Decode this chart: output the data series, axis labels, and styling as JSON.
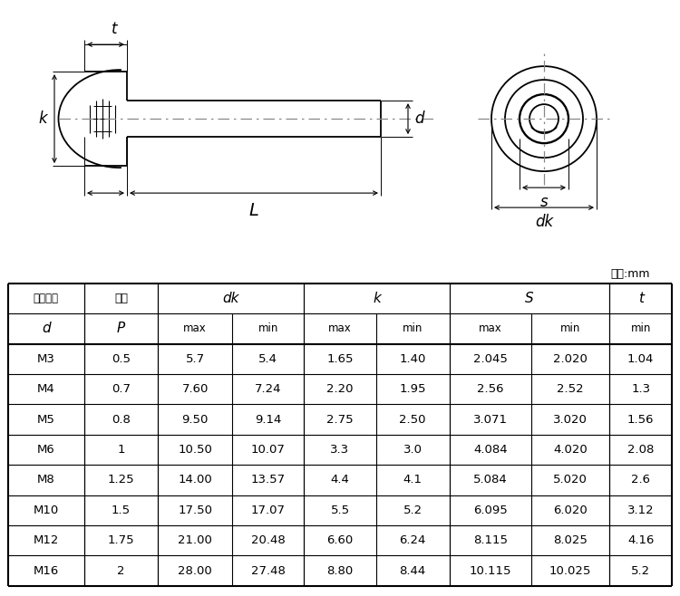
{
  "table_headers_row1": [
    "公称直径",
    "螺距",
    "dk",
    "",
    "k",
    "",
    "S",
    "",
    "t"
  ],
  "table_headers_row2": [
    "d",
    "P",
    "max",
    "min",
    "max",
    "min",
    "max",
    "min",
    "min"
  ],
  "table_data": [
    [
      "M3",
      "0.5",
      "5.7",
      "5.4",
      "1.65",
      "1.40",
      "2.045",
      "2.020",
      "1.04"
    ],
    [
      "M4",
      "0.7",
      "7.60",
      "7.24",
      "2.20",
      "1.95",
      "2.56",
      "2.52",
      "1.3"
    ],
    [
      "M5",
      "0.8",
      "9.50",
      "9.14",
      "2.75",
      "2.50",
      "3.071",
      "3.020",
      "1.56"
    ],
    [
      "M6",
      "1",
      "10.50",
      "10.07",
      "3.3",
      "3.0",
      "4.084",
      "4.020",
      "2.08"
    ],
    [
      "M8",
      "1.25",
      "14.00",
      "13.57",
      "4.4",
      "4.1",
      "5.084",
      "5.020",
      "2.6"
    ],
    [
      "M10",
      "1.5",
      "17.50",
      "17.07",
      "5.5",
      "5.2",
      "6.095",
      "6.020",
      "3.12"
    ],
    [
      "M12",
      "1.75",
      "21.00",
      "20.48",
      "6.60",
      "6.24",
      "8.115",
      "8.025",
      "4.16"
    ],
    [
      "M16",
      "2",
      "28.00",
      "27.48",
      "8.80",
      "8.44",
      "10.115",
      "10.025",
      "5.2"
    ]
  ],
  "unit_text": "单位:mm",
  "col_headers_zh": [
    "公称直径",
    "螺距"
  ],
  "bg_color": "#ffffff",
  "line_color": "#000000",
  "centerline_color": "#888888"
}
